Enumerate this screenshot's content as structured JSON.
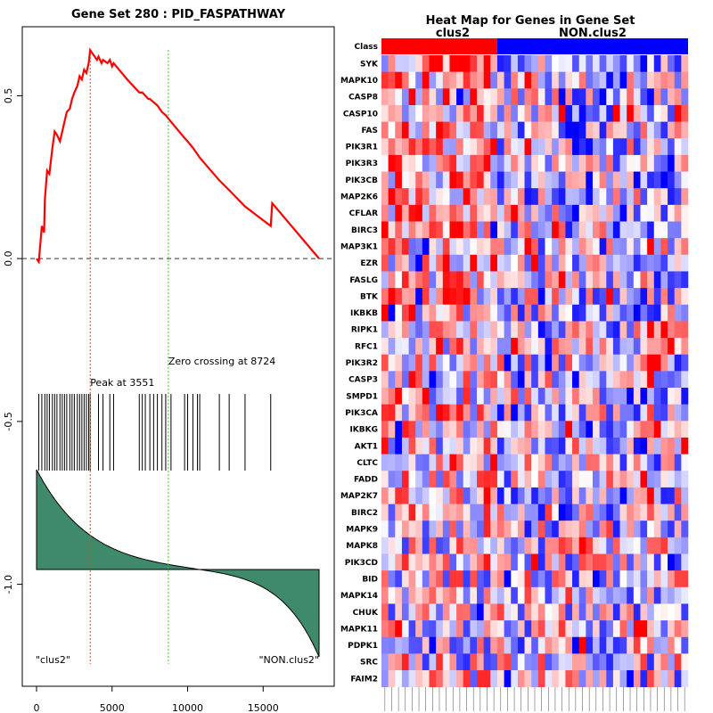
{
  "chart_data": [
    {
      "type": "line",
      "title": "Gene Set  280 : PID_FASPATHWAY",
      "xlim": [
        0,
        18700
      ],
      "ylim": [
        -1.25,
        0.7
      ],
      "x_ticks": [
        {
          "value": 0,
          "label": "0"
        },
        {
          "value": 5000,
          "label": "5000"
        },
        {
          "value": 10000,
          "label": "10000"
        },
        {
          "value": 15000,
          "label": "15000"
        }
      ],
      "y_ticks": [
        {
          "value": 0.5,
          "label": "0.5"
        },
        {
          "value": 0.0,
          "label": "0.0"
        },
        {
          "value": -0.5,
          "label": "-0.5"
        },
        {
          "value": -1.0,
          "label": "-1.0"
        }
      ],
      "hit_positions": [
        150,
        350,
        550,
        700,
        850,
        1050,
        1200,
        1350,
        1550,
        1700,
        1850,
        2000,
        2200,
        2350,
        2500,
        2700,
        2850,
        3000,
        3150,
        3300,
        3450,
        3551,
        4100,
        4400,
        4850,
        5100,
        6800,
        7000,
        7200,
        7500,
        7750,
        8000,
        8300,
        8550,
        8900,
        9800,
        10000,
        10350,
        10650,
        10800,
        12100,
        12750,
        13800,
        15500
      ],
      "es_curve": [
        [
          0,
          0
        ],
        [
          150,
          -0.01
        ],
        [
          350,
          0.1
        ],
        [
          500,
          0.08
        ],
        [
          550,
          0.18
        ],
        [
          700,
          0.27
        ],
        [
          850,
          0.26
        ],
        [
          1050,
          0.34
        ],
        [
          1200,
          0.39
        ],
        [
          1350,
          0.38
        ],
        [
          1550,
          0.36
        ],
        [
          1700,
          0.39
        ],
        [
          1850,
          0.42
        ],
        [
          2000,
          0.45
        ],
        [
          2200,
          0.46
        ],
        [
          2350,
          0.49
        ],
        [
          2500,
          0.51
        ],
        [
          2700,
          0.53
        ],
        [
          2850,
          0.56
        ],
        [
          3000,
          0.55
        ],
        [
          3150,
          0.58
        ],
        [
          3300,
          0.57
        ],
        [
          3450,
          0.6
        ],
        [
          3551,
          0.64
        ],
        [
          4000,
          0.61
        ],
        [
          4100,
          0.62
        ],
        [
          4300,
          0.6
        ],
        [
          4400,
          0.61
        ],
        [
          4700,
          0.6
        ],
        [
          4850,
          0.61
        ],
        [
          5000,
          0.59
        ],
        [
          5100,
          0.6
        ],
        [
          6000,
          0.55
        ],
        [
          6800,
          0.51
        ],
        [
          7000,
          0.51
        ],
        [
          7200,
          0.5
        ],
        [
          7400,
          0.49
        ],
        [
          7500,
          0.49
        ],
        [
          7750,
          0.48
        ],
        [
          8000,
          0.47
        ],
        [
          8300,
          0.45
        ],
        [
          8550,
          0.44
        ],
        [
          8724,
          0.43
        ],
        [
          8900,
          0.42
        ],
        [
          9800,
          0.37
        ],
        [
          10000,
          0.36
        ],
        [
          10350,
          0.34
        ],
        [
          10650,
          0.32
        ],
        [
          10800,
          0.31
        ],
        [
          12100,
          0.24
        ],
        [
          12750,
          0.21
        ],
        [
          13800,
          0.16
        ],
        [
          15500,
          0.1
        ],
        [
          15600,
          0.17
        ],
        [
          18700,
          0.0
        ]
      ],
      "peak": {
        "x": 3551,
        "label": "Peak at 3551"
      },
      "zero_crossing": {
        "x": 8724,
        "label": "Zero crossing at 8724"
      },
      "ranked_metric_range": [
        0.7,
        -0.55
      ],
      "left_label": "\"clus2\"",
      "right_label": "\"NON.clus2\"",
      "colors": {
        "es": "#ff0000",
        "fill": "#3f8a6b",
        "peak": "#ff3333",
        "zero": "#33cc33"
      }
    },
    {
      "type": "heatmap",
      "title": "Heat Map for Genes in Gene Set",
      "class_row_label": "Class",
      "classes": [
        {
          "name": "clus2",
          "count": 17,
          "color": "#ff0000"
        },
        {
          "name": "NON.clus2",
          "count": 28,
          "color": "#0000ff"
        }
      ],
      "genes": [
        "SYK",
        "MAPK10",
        "CASP8",
        "CASP10",
        "FAS",
        "PIK3R1",
        "PIK3R3",
        "PIK3CB",
        "MAP2K6",
        "CFLAR",
        "BIRC3",
        "MAP3K1",
        "EZR",
        "FASLG",
        "BTK",
        "IKBKB",
        "RIPK1",
        "RFC1",
        "PIK3R2",
        "CASP3",
        "SMPD1",
        "PIK3CA",
        "IKBKG",
        "AKT1",
        "CLTC",
        "FADD",
        "MAP2K7",
        "BIRC2",
        "MAPK9",
        "MAPK8",
        "PIK3CD",
        "BID",
        "MAPK14",
        "CHUK",
        "MAPK11",
        "PDPK1",
        "SRC",
        "FAIM2"
      ],
      "sample_count": 45,
      "sample_labels_legible": false,
      "color_scale": {
        "low": "#0000ff",
        "mid": "#ffffff",
        "high": "#ff0000"
      }
    }
  ]
}
